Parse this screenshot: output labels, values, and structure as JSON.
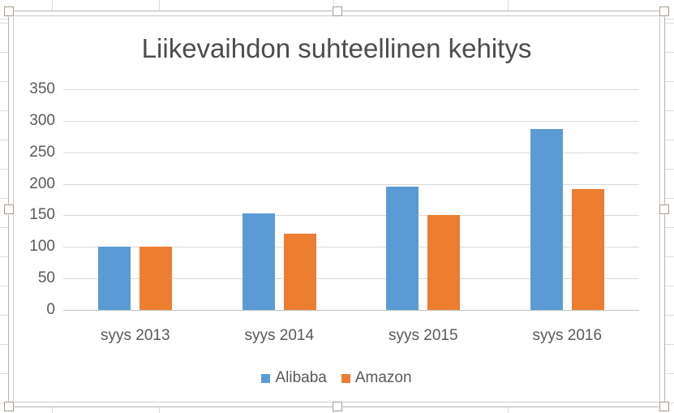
{
  "chart_data": {
    "type": "bar",
    "title": "Liikevaihdon suhteellinen kehitys",
    "categories": [
      "syys 2013",
      "syys 2014",
      "syys 2015",
      "syys 2016"
    ],
    "series": [
      {
        "name": "Alibaba",
        "color": "#5b9bd5",
        "values": [
          100,
          153,
          195,
          287
        ]
      },
      {
        "name": "Amazon",
        "color": "#ed7d31",
        "values": [
          101,
          121,
          150,
          192
        ]
      }
    ],
    "ylim": [
      0,
      350
    ],
    "yticks": [
      0,
      50,
      100,
      150,
      200,
      250,
      300,
      350
    ],
    "xlabel": "",
    "ylabel": "",
    "grid": true,
    "legend_position": "bottom",
    "colors": {
      "gridline": "#d9d9d9",
      "axis_line": "#c3c3c3",
      "label_text": "#595959",
      "title_text": "#4c4c4c"
    }
  }
}
